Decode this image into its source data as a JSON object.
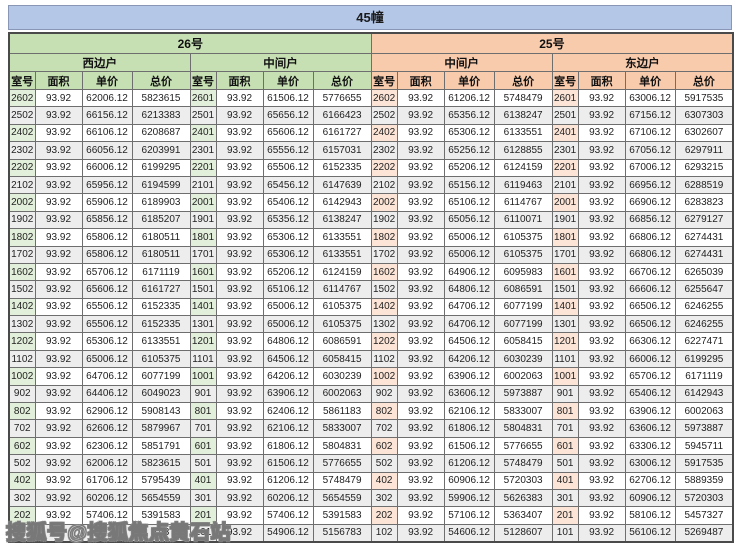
{
  "title": "45幢",
  "watermark": "搜狐号@搜狐焦点黄石站",
  "columns": [
    "室号",
    "面积",
    "单价",
    "总价"
  ],
  "colors": {
    "title_bg": "#b4c7e7",
    "green_header": "#c6e0b4",
    "green_cell": "#e2efda",
    "peach_header": "#f8cbad",
    "peach_cell": "#fce4d6",
    "row_alt": "#ededed"
  },
  "sections": [
    {
      "label": "26号",
      "theme": "green",
      "subsections": [
        {
          "label": "西边户",
          "rows": [
            [
              "2602",
              "93.92",
              "62006.12",
              "5823615"
            ],
            [
              "2502",
              "93.92",
              "66156.12",
              "6213383"
            ],
            [
              "2402",
              "93.92",
              "66106.12",
              "6208687"
            ],
            [
              "2302",
              "93.92",
              "66056.12",
              "6203991"
            ],
            [
              "2202",
              "93.92",
              "66006.12",
              "6199295"
            ],
            [
              "2102",
              "93.92",
              "65956.12",
              "6194599"
            ],
            [
              "2002",
              "93.92",
              "65906.12",
              "6189903"
            ],
            [
              "1902",
              "93.92",
              "65856.12",
              "6185207"
            ],
            [
              "1802",
              "93.92",
              "65806.12",
              "6180511"
            ],
            [
              "1702",
              "93.92",
              "65806.12",
              "6180511"
            ],
            [
              "1602",
              "93.92",
              "65706.12",
              "6171119"
            ],
            [
              "1502",
              "93.92",
              "65606.12",
              "6161727"
            ],
            [
              "1402",
              "93.92",
              "65506.12",
              "6152335"
            ],
            [
              "1302",
              "93.92",
              "65506.12",
              "6152335"
            ],
            [
              "1202",
              "93.92",
              "65306.12",
              "6133551"
            ],
            [
              "1102",
              "93.92",
              "65006.12",
              "6105375"
            ],
            [
              "1002",
              "93.92",
              "64706.12",
              "6077199"
            ],
            [
              "902",
              "93.92",
              "64406.12",
              "6049023"
            ],
            [
              "802",
              "93.92",
              "62906.12",
              "5908143"
            ],
            [
              "702",
              "93.92",
              "62606.12",
              "5879967"
            ],
            [
              "602",
              "93.92",
              "62306.12",
              "5851791"
            ],
            [
              "502",
              "93.92",
              "62006.12",
              "5823615"
            ],
            [
              "402",
              "93.92",
              "61706.12",
              "5795439"
            ],
            [
              "302",
              "93.92",
              "60206.12",
              "5654559"
            ],
            [
              "202",
              "93.92",
              "57406.12",
              "5391583"
            ],
            [
              "",
              "",
              "",
              "743"
            ]
          ]
        },
        {
          "label": "中间户",
          "rows": [
            [
              "2601",
              "93.92",
              "61506.12",
              "5776655"
            ],
            [
              "2501",
              "93.92",
              "65656.12",
              "6166423"
            ],
            [
              "2401",
              "93.92",
              "65606.12",
              "6161727"
            ],
            [
              "2301",
              "93.92",
              "65556.12",
              "6157031"
            ],
            [
              "2201",
              "93.92",
              "65506.12",
              "6152335"
            ],
            [
              "2101",
              "93.92",
              "65456.12",
              "6147639"
            ],
            [
              "2001",
              "93.92",
              "65406.12",
              "6142943"
            ],
            [
              "1901",
              "93.92",
              "65356.12",
              "6138247"
            ],
            [
              "1801",
              "93.92",
              "65306.12",
              "6133551"
            ],
            [
              "1701",
              "93.92",
              "65306.12",
              "6133551"
            ],
            [
              "1601",
              "93.92",
              "65206.12",
              "6124159"
            ],
            [
              "1501",
              "93.92",
              "65106.12",
              "6114767"
            ],
            [
              "1401",
              "93.92",
              "65006.12",
              "6105375"
            ],
            [
              "1301",
              "93.92",
              "65006.12",
              "6105375"
            ],
            [
              "1201",
              "93.92",
              "64806.12",
              "6086591"
            ],
            [
              "1101",
              "93.92",
              "64506.12",
              "6058415"
            ],
            [
              "1001",
              "93.92",
              "64206.12",
              "6030239"
            ],
            [
              "901",
              "93.92",
              "63906.12",
              "6002063"
            ],
            [
              "801",
              "93.92",
              "62406.12",
              "5861183"
            ],
            [
              "701",
              "93.92",
              "62106.12",
              "5833007"
            ],
            [
              "601",
              "93.92",
              "61806.12",
              "5804831"
            ],
            [
              "501",
              "93.92",
              "61506.12",
              "5776655"
            ],
            [
              "401",
              "93.92",
              "61206.12",
              "5748479"
            ],
            [
              "301",
              "93.92",
              "60206.12",
              "5654559"
            ],
            [
              "201",
              "93.92",
              "57406.12",
              "5391583"
            ],
            [
              "101",
              "93.92",
              "54906.12",
              "5156783"
            ]
          ]
        }
      ]
    },
    {
      "label": "25号",
      "theme": "peach",
      "subsections": [
        {
          "label": "中间户",
          "rows": [
            [
              "2602",
              "93.92",
              "61206.12",
              "5748479"
            ],
            [
              "2502",
              "93.92",
              "65356.12",
              "6138247"
            ],
            [
              "2402",
              "93.92",
              "65306.12",
              "6133551"
            ],
            [
              "2302",
              "93.92",
              "65256.12",
              "6128855"
            ],
            [
              "2202",
              "93.92",
              "65206.12",
              "6124159"
            ],
            [
              "2102",
              "93.92",
              "65156.12",
              "6119463"
            ],
            [
              "2002",
              "93.92",
              "65106.12",
              "6114767"
            ],
            [
              "1902",
              "93.92",
              "65056.12",
              "6110071"
            ],
            [
              "1802",
              "93.92",
              "65006.12",
              "6105375"
            ],
            [
              "1702",
              "93.92",
              "65006.12",
              "6105375"
            ],
            [
              "1602",
              "93.92",
              "64906.12",
              "6095983"
            ],
            [
              "1502",
              "93.92",
              "64806.12",
              "6086591"
            ],
            [
              "1402",
              "93.92",
              "64706.12",
              "6077199"
            ],
            [
              "1302",
              "93.92",
              "64706.12",
              "6077199"
            ],
            [
              "1202",
              "93.92",
              "64506.12",
              "6058415"
            ],
            [
              "1102",
              "93.92",
              "64206.12",
              "6030239"
            ],
            [
              "1002",
              "93.92",
              "63906.12",
              "6002063"
            ],
            [
              "902",
              "93.92",
              "63606.12",
              "5973887"
            ],
            [
              "802",
              "93.92",
              "62106.12",
              "5833007"
            ],
            [
              "702",
              "93.92",
              "61806.12",
              "5804831"
            ],
            [
              "602",
              "93.92",
              "61506.12",
              "5776655"
            ],
            [
              "502",
              "93.92",
              "61206.12",
              "5748479"
            ],
            [
              "402",
              "93.92",
              "60906.12",
              "5720303"
            ],
            [
              "302",
              "93.92",
              "59906.12",
              "5626383"
            ],
            [
              "202",
              "93.92",
              "57106.12",
              "5363407"
            ],
            [
              "102",
              "93.92",
              "54606.12",
              "5128607"
            ]
          ]
        },
        {
          "label": "东边户",
          "rows": [
            [
              "2601",
              "93.92",
              "63006.12",
              "5917535"
            ],
            [
              "2501",
              "93.92",
              "67156.12",
              "6307303"
            ],
            [
              "2401",
              "93.92",
              "67106.12",
              "6302607"
            ],
            [
              "2301",
              "93.92",
              "67056.12",
              "6297911"
            ],
            [
              "2201",
              "93.92",
              "67006.12",
              "6293215"
            ],
            [
              "2101",
              "93.92",
              "66956.12",
              "6288519"
            ],
            [
              "2001",
              "93.92",
              "66906.12",
              "6283823"
            ],
            [
              "1901",
              "93.92",
              "66856.12",
              "6279127"
            ],
            [
              "1801",
              "93.92",
              "66806.12",
              "6274431"
            ],
            [
              "1701",
              "93.92",
              "66806.12",
              "6274431"
            ],
            [
              "1601",
              "93.92",
              "66706.12",
              "6265039"
            ],
            [
              "1501",
              "93.92",
              "66606.12",
              "6255647"
            ],
            [
              "1401",
              "93.92",
              "66506.12",
              "6246255"
            ],
            [
              "1301",
              "93.92",
              "66506.12",
              "6246255"
            ],
            [
              "1201",
              "93.92",
              "66306.12",
              "6227471"
            ],
            [
              "1101",
              "93.92",
              "66006.12",
              "6199295"
            ],
            [
              "1001",
              "93.92",
              "65706.12",
              "6171119"
            ],
            [
              "901",
              "93.92",
              "65406.12",
              "6142943"
            ],
            [
              "801",
              "93.92",
              "63906.12",
              "6002063"
            ],
            [
              "701",
              "93.92",
              "63606.12",
              "5973887"
            ],
            [
              "601",
              "93.92",
              "63306.12",
              "5945711"
            ],
            [
              "501",
              "93.92",
              "63006.12",
              "5917535"
            ],
            [
              "401",
              "93.92",
              "62706.12",
              "5889359"
            ],
            [
              "301",
              "93.92",
              "60906.12",
              "5720303"
            ],
            [
              "201",
              "93.92",
              "58106.12",
              "5457327"
            ],
            [
              "101",
              "93.92",
              "56106.12",
              "5269487"
            ]
          ]
        }
      ]
    }
  ]
}
